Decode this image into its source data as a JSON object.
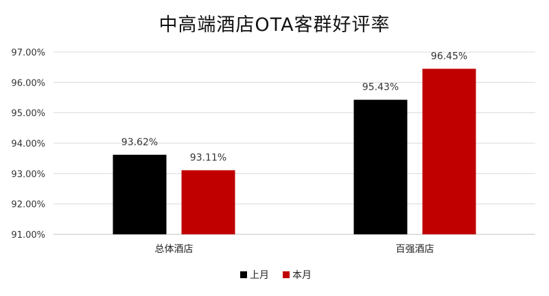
{
  "chart_data": {
    "type": "bar",
    "title": "中高端酒店OTA客群好评率",
    "categories": [
      "总体酒店",
      "百强酒店"
    ],
    "series": [
      {
        "name": "上月",
        "values": [
          93.62,
          95.43
        ],
        "color": "#000000"
      },
      {
        "name": "本月",
        "values": [
          93.11,
          96.45
        ],
        "color": "#c00000"
      }
    ],
    "data_labels": [
      [
        "93.62%",
        "95.43%"
      ],
      [
        "93.11%",
        "96.45%"
      ]
    ],
    "ylim": [
      91,
      97
    ],
    "yticks": [
      "91.00%",
      "92.00%",
      "93.00%",
      "94.00%",
      "95.00%",
      "96.00%",
      "97.00%"
    ],
    "grid": true,
    "legend_position": "bottom"
  }
}
